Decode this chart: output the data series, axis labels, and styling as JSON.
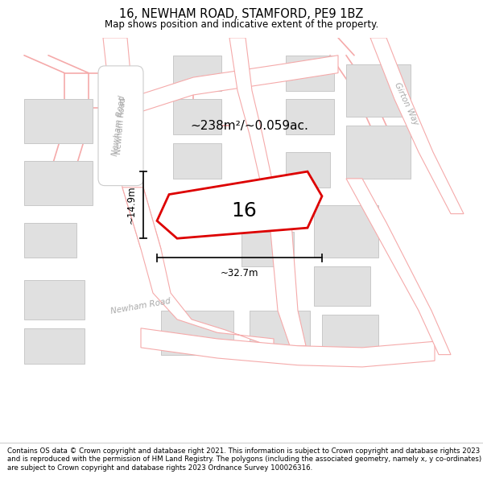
{
  "title": "16, NEWHAM ROAD, STAMFORD, PE9 1BZ",
  "subtitle": "Map shows position and indicative extent of the property.",
  "footer": "Contains OS data © Crown copyright and database right 2021. This information is subject to Crown copyright and database rights 2023 and is reproduced with the permission of HM Land Registry. The polygons (including the associated geometry, namely x, y co-ordinates) are subject to Crown copyright and database rights 2023 Ordnance Survey 100026316.",
  "area_label": "~238m²/~0.059ac.",
  "width_label": "~32.7m",
  "height_label": "~14.9m",
  "plot_number": "16",
  "bg_color": "#ffffff",
  "title_fontsize": 10.5,
  "subtitle_fontsize": 8.5,
  "footer_fontsize": 6.2,
  "road_outline_color": "#f5aaaa",
  "road_fill_color": "#ffffff",
  "road_label_color": "#aaaaaa",
  "building_fill": "#e0e0e0",
  "building_edge": "#c8c8c8",
  "highlight_edge": "#dd0000",
  "dim_color": "#111111",
  "newham_road_label_color": "#aaaaaa",
  "girton_way_label_color": "#aaaaaa"
}
